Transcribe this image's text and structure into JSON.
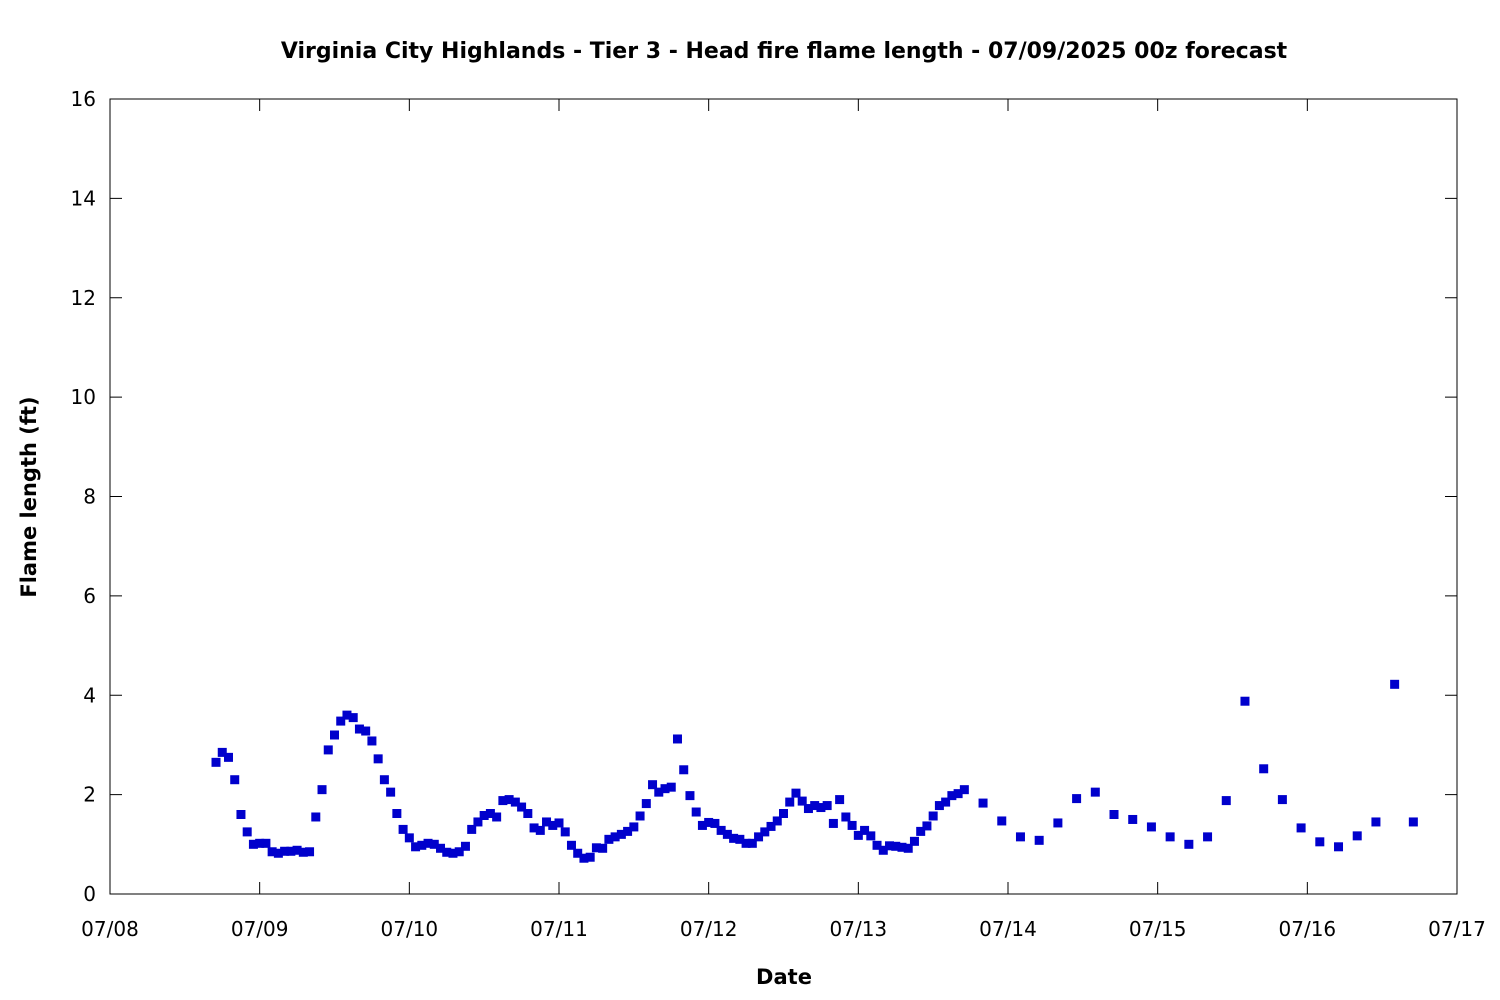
{
  "chart_data": {
    "type": "scatter",
    "title": "Virginia City Highlands - Tier 3 - Head fire flame length - 07/09/2025 00z forecast",
    "xlabel": "Date",
    "ylabel": "Flame length (ft)",
    "xlim": [
      "07/08",
      "07/17"
    ],
    "ylim": [
      0,
      16
    ],
    "x_ticks": [
      "07/08",
      "07/09",
      "07/10",
      "07/11",
      "07/12",
      "07/13",
      "07/14",
      "07/15",
      "07/16",
      "07/17"
    ],
    "y_ticks": [
      "0",
      "2",
      "4",
      "6",
      "8",
      "10",
      "12",
      "14",
      "16"
    ],
    "grid": false,
    "legend": "none",
    "marker_color": "#0000cc",
    "series": [
      {
        "x": [
          "07/08 17:00",
          "07/08 18:00",
          "07/08 19:00",
          "07/08 20:00",
          "07/08 21:00",
          "07/08 22:00",
          "07/08 23:00",
          "07/09 00:00",
          "07/09 01:00",
          "07/09 02:00",
          "07/09 03:00",
          "07/09 04:00",
          "07/09 05:00",
          "07/09 06:00",
          "07/09 07:00",
          "07/09 08:00",
          "07/09 09:00",
          "07/09 10:00",
          "07/09 11:00",
          "07/09 12:00",
          "07/09 13:00",
          "07/09 14:00",
          "07/09 15:00",
          "07/09 16:00",
          "07/09 17:00",
          "07/09 18:00",
          "07/09 19:00",
          "07/09 20:00",
          "07/09 21:00",
          "07/09 22:00",
          "07/09 23:00",
          "07/10 00:00",
          "07/10 01:00",
          "07/10 02:00",
          "07/10 03:00",
          "07/10 04:00",
          "07/10 05:00",
          "07/10 06:00",
          "07/10 07:00",
          "07/10 08:00",
          "07/10 09:00",
          "07/10 10:00",
          "07/10 11:00",
          "07/10 12:00",
          "07/10 13:00",
          "07/10 14:00",
          "07/10 15:00",
          "07/10 16:00",
          "07/10 17:00",
          "07/10 18:00",
          "07/10 19:00",
          "07/10 20:00",
          "07/10 21:00",
          "07/10 22:00",
          "07/10 23:00",
          "07/11 00:00",
          "07/11 01:00",
          "07/11 02:00",
          "07/11 03:00",
          "07/11 04:00",
          "07/11 05:00",
          "07/11 06:00",
          "07/11 07:00",
          "07/11 08:00",
          "07/11 09:00",
          "07/11 10:00",
          "07/11 11:00",
          "07/11 12:00",
          "07/11 13:00",
          "07/11 14:00",
          "07/11 15:00",
          "07/11 16:00",
          "07/11 17:00",
          "07/11 18:00",
          "07/11 19:00",
          "07/11 20:00",
          "07/11 21:00",
          "07/11 22:00",
          "07/11 23:00",
          "07/12 00:00",
          "07/12 01:00",
          "07/12 02:00",
          "07/12 03:00",
          "07/12 04:00",
          "07/12 05:00",
          "07/12 06:00",
          "07/12 07:00",
          "07/12 08:00",
          "07/12 09:00",
          "07/12 10:00",
          "07/12 11:00",
          "07/12 12:00",
          "07/12 13:00",
          "07/12 14:00",
          "07/12 15:00",
          "07/12 16:00",
          "07/12 17:00",
          "07/12 18:00",
          "07/12 19:00",
          "07/12 20:00",
          "07/12 21:00",
          "07/12 22:00",
          "07/12 23:00",
          "07/13 00:00",
          "07/13 01:00",
          "07/13 02:00",
          "07/13 03:00",
          "07/13 04:00",
          "07/13 05:00",
          "07/13 06:00",
          "07/13 07:00",
          "07/13 08:00",
          "07/13 09:00",
          "07/13 10:00",
          "07/13 11:00",
          "07/13 12:00",
          "07/13 13:00",
          "07/13 14:00",
          "07/13 15:00",
          "07/13 16:00",
          "07/13 17:00",
          "07/13 20:00",
          "07/13 23:00",
          "07/14 02:00",
          "07/14 05:00",
          "07/14 08:00",
          "07/14 11:00",
          "07/14 14:00",
          "07/14 17:00",
          "07/14 20:00",
          "07/14 23:00",
          "07/15 02:00",
          "07/15 05:00",
          "07/15 08:00",
          "07/15 11:00",
          "07/15 14:00",
          "07/15 17:00",
          "07/15 20:00",
          "07/15 23:00",
          "07/16 02:00",
          "07/16 05:00",
          "07/16 08:00",
          "07/16 11:00",
          "07/16 14:00",
          "07/16 17:00"
        ],
        "y": [
          2.65,
          2.85,
          2.75,
          2.3,
          1.6,
          1.25,
          1.0,
          1.02,
          1.02,
          0.85,
          0.82,
          0.86,
          0.86,
          0.88,
          0.84,
          0.85,
          1.55,
          2.1,
          2.9,
          3.2,
          3.48,
          3.6,
          3.55,
          3.32,
          3.28,
          3.08,
          2.72,
          2.3,
          2.05,
          1.62,
          1.3,
          1.13,
          0.95,
          0.98,
          1.02,
          1.0,
          0.92,
          0.84,
          0.82,
          0.85,
          0.96,
          1.3,
          1.45,
          1.58,
          1.62,
          1.55,
          1.88,
          1.9,
          1.85,
          1.75,
          1.62,
          1.33,
          1.28,
          1.45,
          1.38,
          1.43,
          1.25,
          0.98,
          0.82,
          0.72,
          0.74,
          0.93,
          0.92,
          1.1,
          1.15,
          1.2,
          1.26,
          1.35,
          1.57,
          1.82,
          2.2,
          2.05,
          2.12,
          2.15,
          3.12,
          2.5,
          1.98,
          1.65,
          1.38,
          1.44,
          1.42,
          1.28,
          1.2,
          1.12,
          1.1,
          1.02,
          1.02,
          1.15,
          1.25,
          1.36,
          1.47,
          1.62,
          1.85,
          2.03,
          1.87,
          1.72,
          1.78,
          1.74,
          1.78,
          1.42,
          1.9,
          1.55,
          1.38,
          1.18,
          1.28,
          1.17,
          0.98,
          0.88,
          0.97,
          0.96,
          0.94,
          0.92,
          1.06,
          1.26,
          1.37,
          1.57,
          1.78,
          1.85,
          1.98,
          2.02,
          2.1,
          1.83,
          1.47,
          1.15,
          1.08,
          1.43,
          1.92,
          2.05,
          1.6,
          1.5,
          1.35,
          1.15,
          1.0,
          1.15,
          1.88,
          3.88,
          2.52,
          1.9,
          1.33,
          1.05,
          0.95,
          1.17,
          1.45,
          4.22,
          1.45
        ]
      }
    ]
  }
}
